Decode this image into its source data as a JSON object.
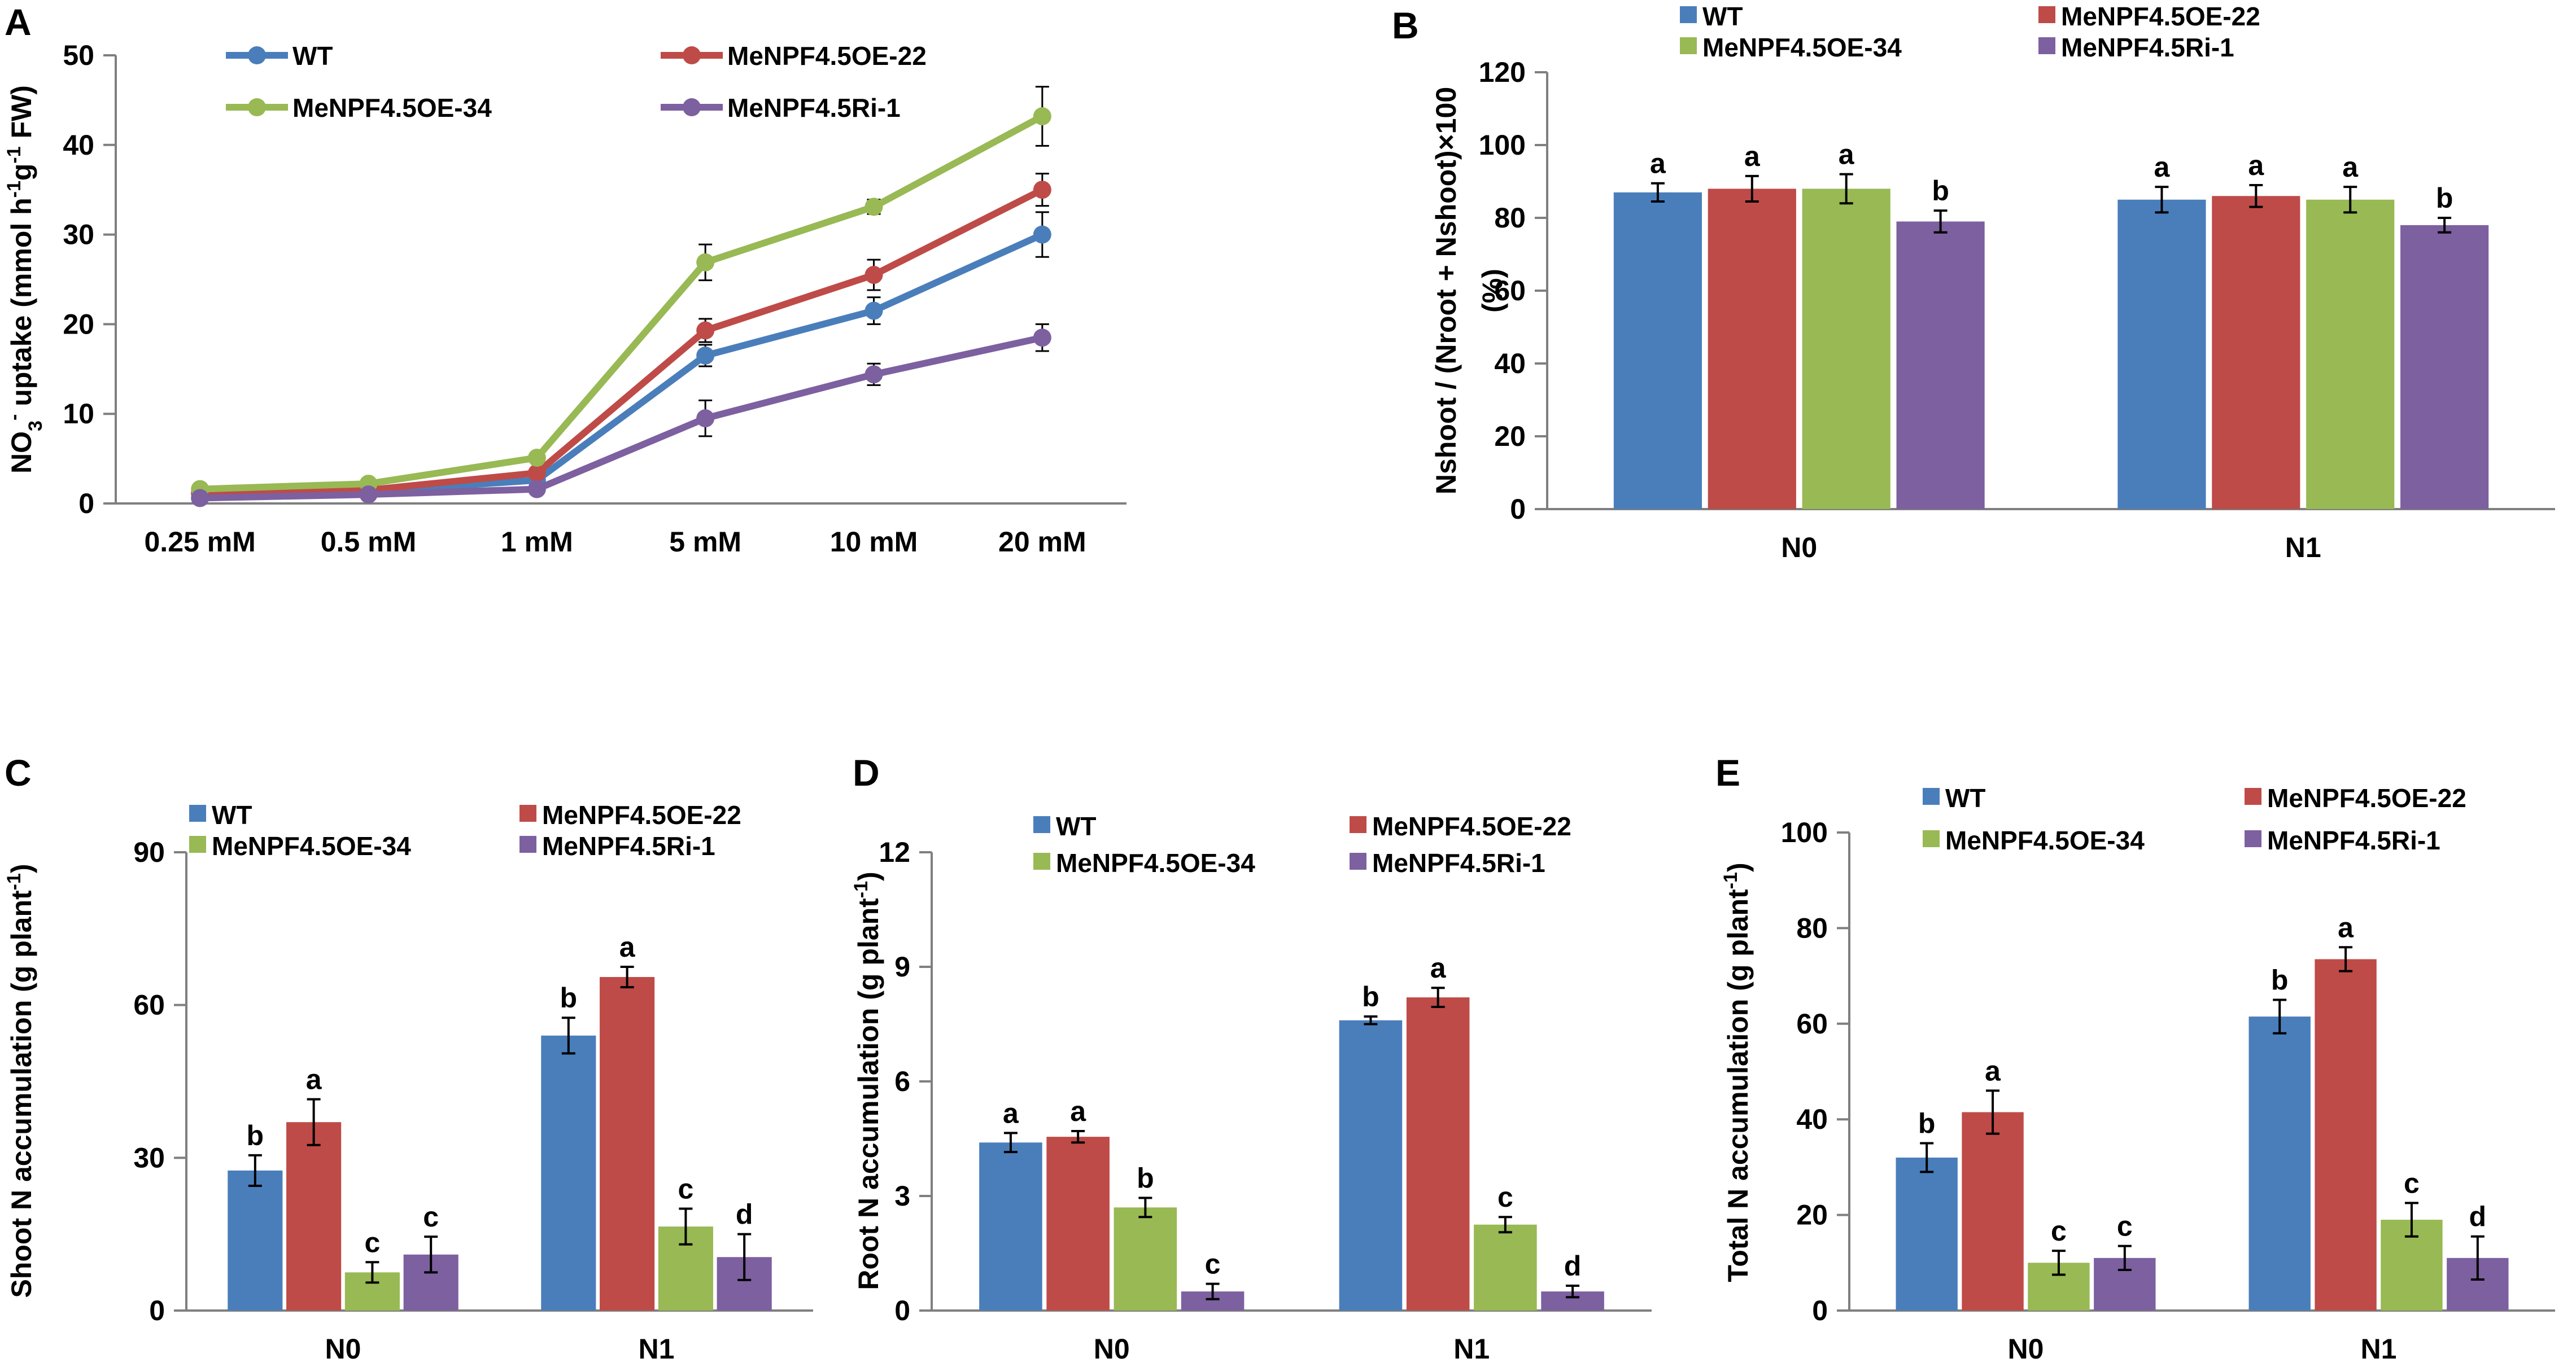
{
  "colors": {
    "WT": "#4a7ebb",
    "OE22": "#be4b48",
    "OE34": "#98b954",
    "Ri1": "#7d60a0",
    "axis": "#7f7f7f",
    "text": "#000000",
    "err": "#000000"
  },
  "chart_data": [
    {
      "panel": "A",
      "type": "line",
      "title": "",
      "ylabel_parts": [
        "NO",
        "3",
        "-",
        " uptake (mmol h",
        "-1",
        "g",
        "-1",
        " FW)"
      ],
      "ylabel": "NO3- uptake (mmol h-1g-1 FW)",
      "xlabel": "",
      "categories": [
        "0.25 mM",
        "0.5 mM",
        "1 mM",
        "5 mM",
        "10 mM",
        "20 mM"
      ],
      "ylim": [
        0,
        50
      ],
      "yticks": [
        0,
        10,
        20,
        30,
        40,
        50
      ],
      "legend": [
        "WT",
        "MeNPF4.5OE-22",
        "MeNPF4.5OE-34",
        "MeNPF4.5Ri-1"
      ],
      "series": [
        {
          "name": "WT",
          "color": "#4a7ebb",
          "values": [
            1.1,
            1.3,
            2.6,
            16.5,
            21.5,
            30.0
          ],
          "errors": [
            0.3,
            0.3,
            0.5,
            1.2,
            1.5,
            2.5
          ]
        },
        {
          "name": "MeNPF4.5OE-22",
          "color": "#be4b48",
          "values": [
            1.2,
            1.5,
            3.4,
            19.3,
            25.5,
            35.0
          ],
          "errors": [
            0.3,
            0.3,
            0.5,
            1.3,
            1.7,
            1.8
          ]
        },
        {
          "name": "MeNPF4.5OE-34",
          "color": "#98b954",
          "values": [
            1.6,
            2.2,
            5.1,
            26.9,
            33.1,
            43.2
          ],
          "errors": [
            0.3,
            0.3,
            0.5,
            2.0,
            0.8,
            3.3
          ]
        },
        {
          "name": "MeNPF4.5Ri-1",
          "color": "#7d60a0",
          "values": [
            0.6,
            1.0,
            1.6,
            9.5,
            14.4,
            18.5
          ],
          "errors": [
            0.2,
            0.3,
            0.4,
            2.0,
            1.2,
            1.5
          ]
        }
      ]
    },
    {
      "panel": "B",
      "type": "bar",
      "title": "",
      "ylabel": "Nshoot / (Nroot + Nshoot)×100",
      "ylabel2": "(%)",
      "xlabel": "",
      "categories": [
        "N0",
        "N1"
      ],
      "ylim": [
        0,
        120
      ],
      "yticks": [
        0,
        20,
        40,
        60,
        80,
        100,
        120
      ],
      "legend": [
        "WT",
        "MeNPF4.5OE-22",
        "MeNPF4.5OE-34",
        "MeNPF4.5Ri-1"
      ],
      "series": [
        {
          "name": "WT",
          "color": "#4a7ebb",
          "values": [
            87,
            85
          ],
          "errors": [
            2.5,
            3.5
          ],
          "letters": [
            "a",
            "a"
          ]
        },
        {
          "name": "MeNPF4.5OE-22",
          "color": "#be4b48",
          "values": [
            88,
            86
          ],
          "errors": [
            3.5,
            3.0
          ],
          "letters": [
            "a",
            "a"
          ]
        },
        {
          "name": "MeNPF4.5OE-34",
          "color": "#98b954",
          "values": [
            88,
            85
          ],
          "errors": [
            4.0,
            3.5
          ],
          "letters": [
            "a",
            "a"
          ]
        },
        {
          "name": "MeNPF4.5Ri-1",
          "color": "#7d60a0",
          "values": [
            79,
            78
          ],
          "errors": [
            3.0,
            2.0
          ],
          "letters": [
            "b",
            "b"
          ]
        }
      ]
    },
    {
      "panel": "C",
      "type": "bar",
      "title": "",
      "ylabel": "Shoot N accumulation (g plant",
      "ylabel_sup": "-1",
      "ylabel_end": ")",
      "xlabel": "",
      "categories": [
        "N0",
        "N1"
      ],
      "ylim": [
        0,
        90
      ],
      "yticks": [
        0,
        30,
        60,
        90
      ],
      "legend": [
        "WT",
        "MeNPF4.5OE-22",
        "MeNPF4.5OE-34",
        "MeNPF4.5Ri-1"
      ],
      "series": [
        {
          "name": "WT",
          "color": "#4a7ebb",
          "values": [
            27.5,
            54.0
          ],
          "errors": [
            3.0,
            3.5
          ],
          "letters": [
            "b",
            "b"
          ]
        },
        {
          "name": "MeNPF4.5OE-22",
          "color": "#be4b48",
          "values": [
            37.0,
            65.5
          ],
          "errors": [
            4.5,
            2.0
          ],
          "letters": [
            "a",
            "a"
          ]
        },
        {
          "name": "MeNPF4.5OE-34",
          "color": "#98b954",
          "values": [
            7.5,
            16.5
          ],
          "errors": [
            2.0,
            3.5
          ],
          "letters": [
            "c",
            "c"
          ]
        },
        {
          "name": "MeNPF4.5Ri-1",
          "color": "#7d60a0",
          "values": [
            11.0,
            10.5
          ],
          "errors": [
            3.5,
            4.5
          ],
          "letters": [
            "c",
            "d"
          ]
        }
      ]
    },
    {
      "panel": "D",
      "type": "bar",
      "title": "",
      "ylabel": "Root N accumulation (g plant",
      "ylabel_sup": "-1",
      "ylabel_end": ")",
      "xlabel": "",
      "categories": [
        "N0",
        "N1"
      ],
      "ylim": [
        0,
        12
      ],
      "yticks": [
        0,
        3,
        6,
        9,
        12
      ],
      "legend": [
        "WT",
        "MeNPF4.5OE-22",
        "MeNPF4.5OE-34",
        "MeNPF4.5Ri-1"
      ],
      "series": [
        {
          "name": "WT",
          "color": "#4a7ebb",
          "values": [
            4.4,
            7.6
          ],
          "errors": [
            0.25,
            0.1
          ],
          "letters": [
            "a",
            "b"
          ]
        },
        {
          "name": "MeNPF4.5OE-22",
          "color": "#be4b48",
          "values": [
            4.55,
            8.2
          ],
          "errors": [
            0.15,
            0.25
          ],
          "letters": [
            "a",
            "a"
          ]
        },
        {
          "name": "MeNPF4.5OE-34",
          "color": "#98b954",
          "values": [
            2.7,
            2.25
          ],
          "errors": [
            0.25,
            0.2
          ],
          "letters": [
            "b",
            "c"
          ]
        },
        {
          "name": "MeNPF4.5Ri-1",
          "color": "#7d60a0",
          "values": [
            0.5,
            0.5
          ],
          "errors": [
            0.2,
            0.15
          ],
          "letters": [
            "c",
            "d"
          ]
        }
      ]
    },
    {
      "panel": "E",
      "type": "bar",
      "title": "",
      "ylabel": "Total N accumulation (g plant",
      "ylabel_sup": "-1",
      "ylabel_end": ")",
      "xlabel": "",
      "categories": [
        "N0",
        "N1"
      ],
      "ylim": [
        0,
        100
      ],
      "yticks": [
        0,
        20,
        40,
        60,
        80,
        100
      ],
      "legend": [
        "WT",
        "MeNPF4.5OE-22",
        "MeNPF4.5OE-34",
        "MeNPF4.5Ri-1"
      ],
      "series": [
        {
          "name": "WT",
          "color": "#4a7ebb",
          "values": [
            32,
            61.5
          ],
          "errors": [
            3.0,
            3.5
          ],
          "letters": [
            "b",
            "b"
          ]
        },
        {
          "name": "MeNPF4.5OE-22",
          "color": "#be4b48",
          "values": [
            41.5,
            73.5
          ],
          "errors": [
            4.5,
            2.5
          ],
          "letters": [
            "a",
            "a"
          ]
        },
        {
          "name": "MeNPF4.5OE-34",
          "color": "#98b954",
          "values": [
            10,
            19
          ],
          "errors": [
            2.5,
            3.5
          ],
          "letters": [
            "c",
            "c"
          ]
        },
        {
          "name": "MeNPF4.5Ri-1",
          "color": "#7d60a0",
          "values": [
            11,
            11
          ],
          "errors": [
            2.5,
            4.5
          ],
          "letters": [
            "c",
            "d"
          ]
        }
      ]
    }
  ]
}
